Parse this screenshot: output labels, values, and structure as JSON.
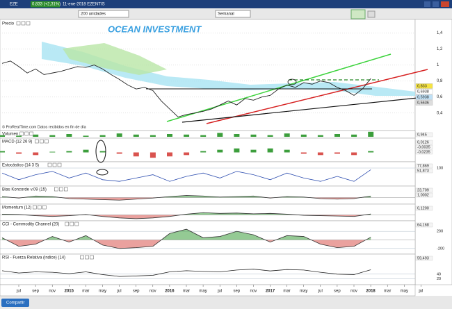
{
  "window": {
    "symbol": "EZE",
    "quote": "0,833 (+2,31%)",
    "date": "11-ene-2018 EZENTIS"
  },
  "toolbar": {
    "units": "200 unidades",
    "period": "Semanal"
  },
  "watermark": "OCEAN INVESTMENT",
  "price_panel": {
    "title": "Precio",
    "ylim": [
      0.18,
      1.57
    ],
    "yticks": [
      {
        "value": 1.4,
        "label": "1,4"
      },
      {
        "value": 1.2,
        "label": "1,2"
      },
      1,
      {
        "value": 0.8,
        "label": "0,8"
      },
      {
        "value": 0.6,
        "label": "0,6"
      },
      {
        "value": 0.4,
        "label": "0,4"
      }
    ],
    "values": [
      1.02,
      1.05,
      0.98,
      0.9,
      0.95,
      0.88,
      0.9,
      0.92,
      0.95,
      0.98,
      0.97,
      1.0,
      0.95,
      0.88,
      0.82,
      0.75,
      0.7,
      0.72,
      0.68,
      0.55,
      0.45,
      0.35,
      0.38,
      0.4,
      0.42,
      0.45,
      0.5,
      0.55,
      0.5,
      0.58,
      0.56,
      0.6,
      0.62,
      0.7,
      0.75,
      0.72,
      0.78,
      0.76,
      0.8,
      0.78,
      0.72,
      0.68,
      0.62,
      0.7,
      0.83
    ],
    "color": "#222222",
    "labels": [
      "0,833",
      "0,6938",
      "0,5938",
      "0,5636"
    ],
    "footer": "© ProRealTime.com  Datos recibidos en fin de día"
  },
  "indicators": [
    {
      "title": "Volumen",
      "style": "bars",
      "ylim": [
        0,
        1
      ],
      "values": [
        0.3,
        0.2,
        0.4,
        0.3,
        0.5,
        0.2,
        0.3,
        0.6,
        0.4,
        0.3,
        0.5,
        0.4,
        0.3,
        0.7,
        0.5,
        0.4,
        0.3,
        0.6,
        0.4,
        0.3,
        0.5,
        0.4,
        0.9
      ],
      "labels": [
        "0,945"
      ]
    },
    {
      "title": "MACD (12 26 9)",
      "style": "bars",
      "ylim": [
        -0.06,
        0.06
      ],
      "values": [
        0.01,
        -0.01,
        -0.02,
        0.005,
        0.01,
        0.02,
        0.01,
        -0.01,
        -0.03,
        -0.04,
        -0.03,
        -0.02,
        0.01,
        0.02,
        0.03,
        0.02,
        0.03,
        0.02,
        -0.01,
        -0.02,
        -0.01,
        -0.02,
        0.01
      ],
      "labels": [
        "0,0126",
        "-0,0035",
        "-0,0235"
      ]
    },
    {
      "title": "Estocástico (14 3 5)",
      "style": "line",
      "color": "#2f4fb0",
      "ylim": [
        0,
        100
      ],
      "yticks": [
        100
      ],
      "values": [
        70,
        30,
        60,
        80,
        40,
        70,
        30,
        20,
        40,
        60,
        20,
        50,
        70,
        40,
        80,
        60,
        30,
        70,
        40,
        20,
        50,
        20,
        90
      ],
      "labels": [
        "77,869",
        "51,873"
      ]
    },
    {
      "title": "Bias Koncorde v.09 (15)",
      "style": "area",
      "ylim": [
        -10,
        10
      ],
      "values": [
        2,
        -1,
        3,
        2,
        -2,
        -3,
        -4,
        -5,
        -3,
        -1,
        2,
        4,
        3,
        1,
        2,
        3,
        -1,
        2,
        1,
        -2,
        -3,
        -2,
        3
      ],
      "labels": [
        "23,709",
        "1,0002"
      ]
    },
    {
      "title": "Momentum (12)",
      "style": "area",
      "ylim": [
        -0.6,
        0.6
      ],
      "values": [
        0.1,
        0.05,
        -0.1,
        -0.2,
        -0.1,
        0.05,
        -0.2,
        -0.4,
        -0.5,
        -0.4,
        -0.2,
        0.1,
        0.3,
        0.2,
        0.25,
        0.15,
        0.2,
        0.1,
        -0.05,
        -0.1,
        -0.15,
        -0.2,
        0.12
      ],
      "labels": [
        "0,1200"
      ]
    },
    {
      "title": "CCI - Commodity Channel (20)",
      "style": "area",
      "ylim": [
        -300,
        300
      ],
      "yticks": [
        200,
        -200
      ],
      "values": [
        50,
        -150,
        -100,
        80,
        -50,
        100,
        -120,
        -200,
        -180,
        -150,
        150,
        250,
        50,
        80,
        200,
        120,
        -50,
        100,
        80,
        -100,
        -180,
        -150,
        64
      ],
      "labels": [
        "64,168"
      ]
    },
    {
      "title": "RSI - Fuerza Relativa (indice) (14)",
      "style": "line",
      "color": "#222222",
      "ylim": [
        0,
        100
      ],
      "yticks": [
        40,
        20
      ],
      "values": [
        55,
        45,
        50,
        48,
        42,
        50,
        38,
        30,
        32,
        35,
        50,
        55,
        52,
        50,
        58,
        62,
        54,
        60,
        58,
        48,
        40,
        38,
        59
      ],
      "labels": [
        "59,493"
      ]
    }
  ],
  "colors": {
    "up": "#3c9e3c",
    "down": "#d9534f"
  },
  "x_axis": [
    "jul",
    "sep",
    "nov",
    "2015",
    "mar",
    "may",
    "jul",
    "sep",
    "nov",
    "2016",
    "mar",
    "may",
    "jul",
    "sep",
    "nov",
    "2017",
    "mar",
    "may",
    "jul",
    "sep",
    "nov",
    "2018",
    "mar",
    "may",
    "jul"
  ],
  "footer": {
    "share": "Compartir"
  }
}
